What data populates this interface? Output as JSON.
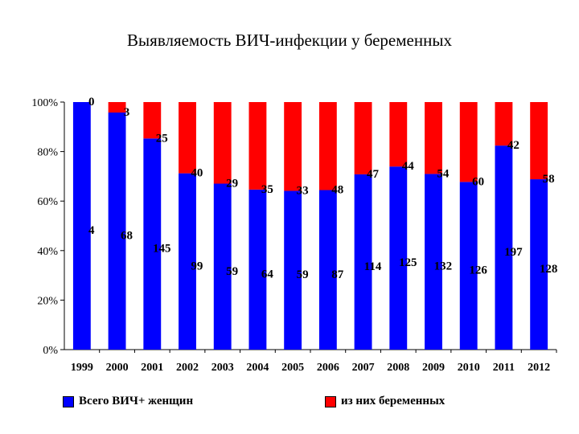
{
  "title": "Выявляемость ВИЧ-инфекции у беременных",
  "colors": {
    "women": "#0000ff",
    "pregnant": "#ff0000",
    "background": "#ffffff"
  },
  "legend": {
    "women": "Всего ВИЧ+ женщин",
    "pregnant": "из них беременных"
  },
  "chart_data": {
    "type": "bar",
    "stacked": "percent",
    "categories": [
      "1999",
      "2000",
      "2001",
      "2002",
      "2003",
      "2004",
      "2005",
      "2006",
      "2007",
      "2008",
      "2009",
      "2010",
      "2011",
      "2012"
    ],
    "yticks": [
      "0%",
      "20%",
      "40%",
      "60%",
      "80%",
      "100%"
    ],
    "ylim": [
      0,
      100
    ],
    "series": [
      {
        "name": "Всего ВИЧ+ женщин",
        "values": [
          4,
          68,
          145,
          99,
          59,
          64,
          59,
          87,
          114,
          125,
          132,
          126,
          197,
          128
        ]
      },
      {
        "name": "из них беременных",
        "values": [
          0,
          3,
          25,
          40,
          29,
          35,
          33,
          48,
          47,
          44,
          54,
          60,
          42,
          58
        ]
      }
    ],
    "legend_position": "bottom"
  }
}
